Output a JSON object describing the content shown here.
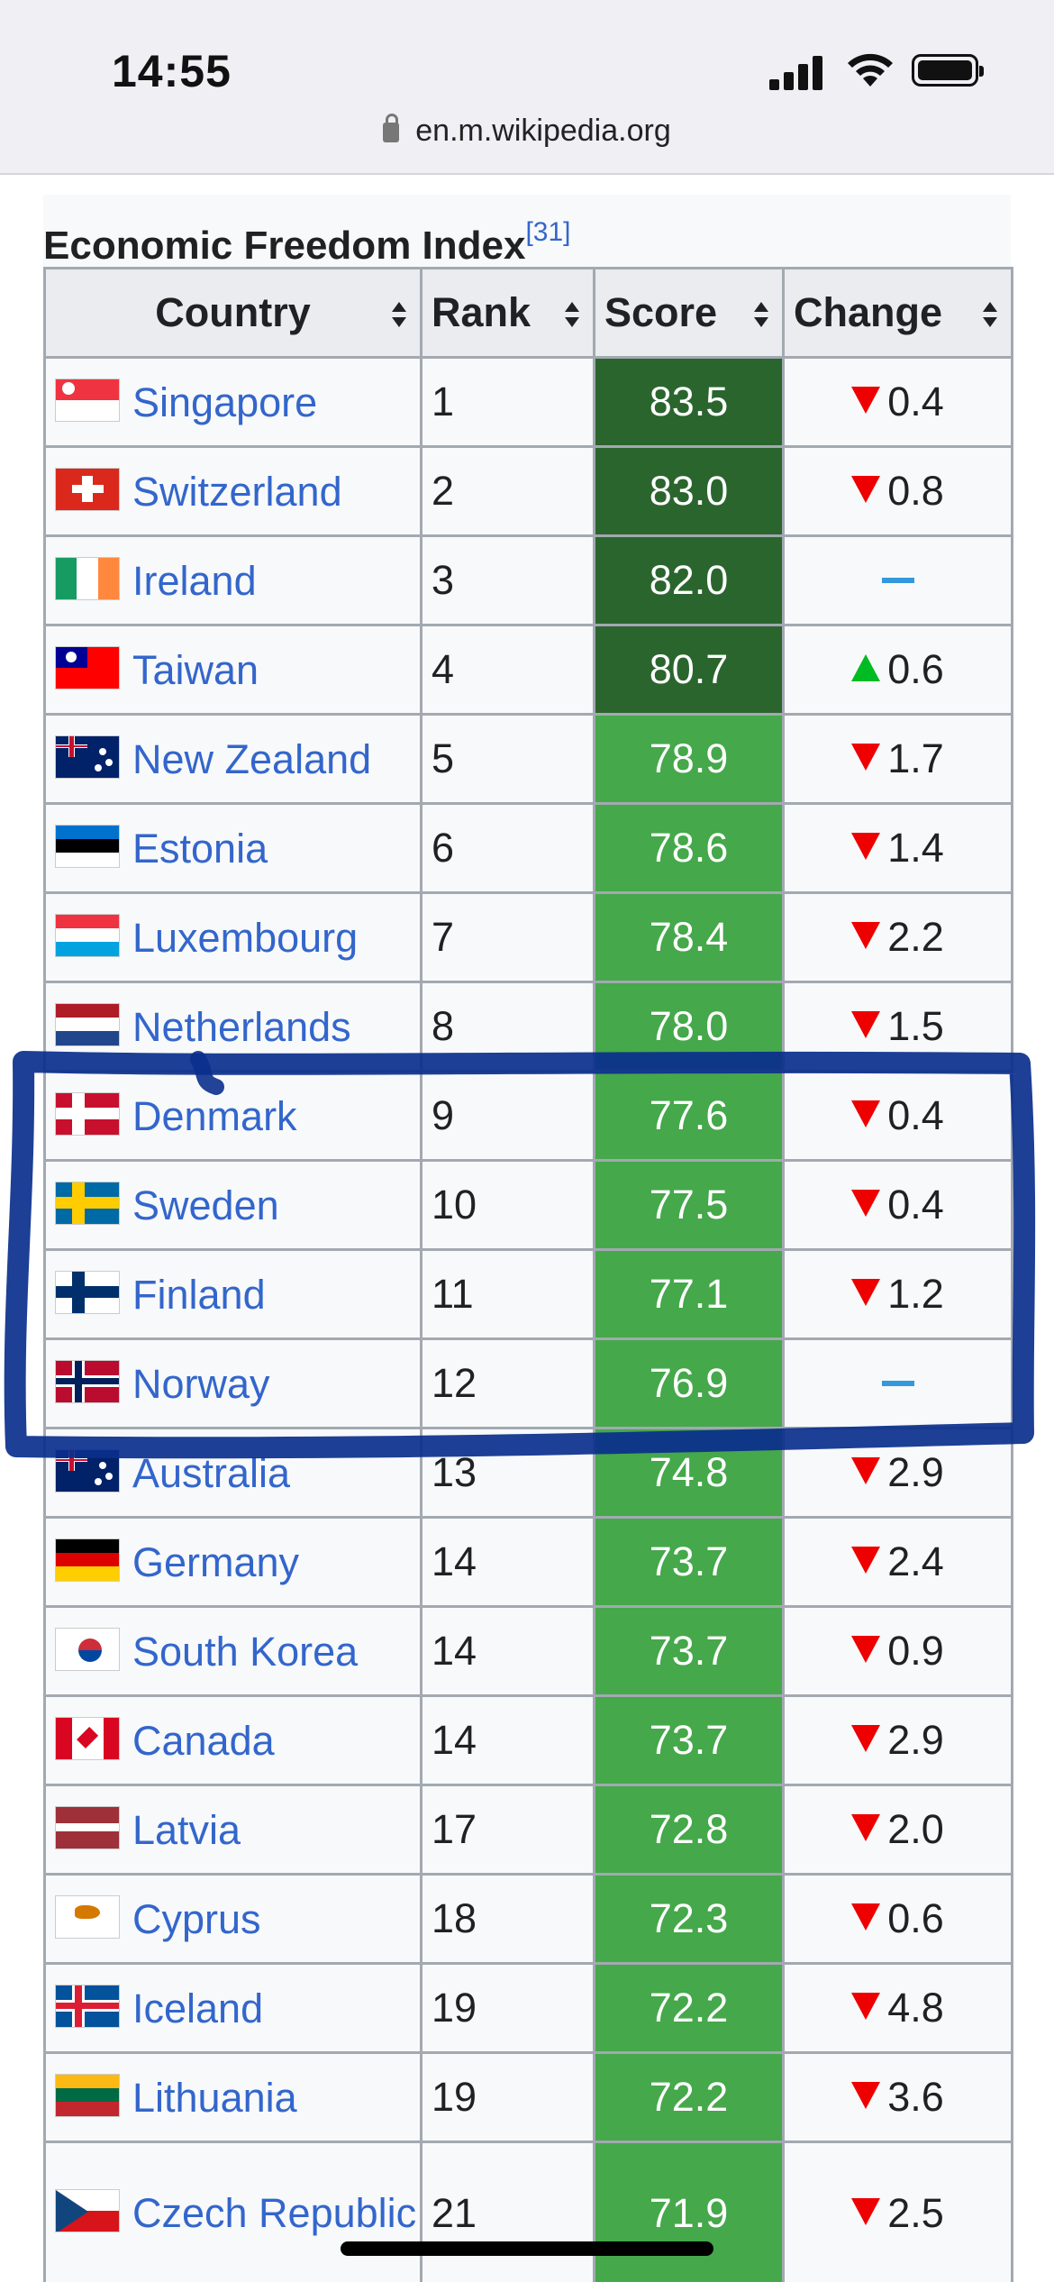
{
  "status_bar": {
    "time": "14:55"
  },
  "browser": {
    "url": "en.m.wikipedia.org"
  },
  "table": {
    "caption": "Economic Freedom Index",
    "citation": "[31]",
    "headers": {
      "country": "Country",
      "rank": "Rank",
      "score": "Score",
      "change": "Change"
    },
    "colors": {
      "dark_green": "#2b652e",
      "green": "#45a84a",
      "down": "#ee0000",
      "up": "#00bb22",
      "neutral": "#3399dd",
      "link": "#3366cc"
    },
    "rows": [
      {
        "country": "Singapore",
        "flag": "singapore-flag",
        "rank": "1",
        "score": "83.5",
        "band": "dark",
        "dir": "down",
        "change": "0.4"
      },
      {
        "country": "Switzerland",
        "flag": "switzerland-flag",
        "rank": "2",
        "score": "83.0",
        "band": "dark",
        "dir": "down",
        "change": "0.8"
      },
      {
        "country": "Ireland",
        "flag": "ireland-flag",
        "rank": "3",
        "score": "82.0",
        "band": "dark",
        "dir": "none",
        "change": ""
      },
      {
        "country": "Taiwan",
        "flag": "taiwan-flag",
        "rank": "4",
        "score": "80.7",
        "band": "dark",
        "dir": "up",
        "change": "0.6"
      },
      {
        "country": "New Zealand",
        "flag": "new-zealand-flag",
        "rank": "5",
        "score": "78.9",
        "band": "light",
        "dir": "down",
        "change": "1.7"
      },
      {
        "country": "Estonia",
        "flag": "estonia-flag",
        "rank": "6",
        "score": "78.6",
        "band": "light",
        "dir": "down",
        "change": "1.4"
      },
      {
        "country": "Luxembourg",
        "flag": "luxembourg-flag",
        "rank": "7",
        "score": "78.4",
        "band": "light",
        "dir": "down",
        "change": "2.2"
      },
      {
        "country": "Netherlands",
        "flag": "netherlands-flag",
        "rank": "8",
        "score": "78.0",
        "band": "light",
        "dir": "down",
        "change": "1.5"
      },
      {
        "country": "Denmark",
        "flag": "denmark-flag",
        "rank": "9",
        "score": "77.6",
        "band": "light",
        "dir": "down",
        "change": "0.4"
      },
      {
        "country": "Sweden",
        "flag": "sweden-flag",
        "rank": "10",
        "score": "77.5",
        "band": "light",
        "dir": "down",
        "change": "0.4"
      },
      {
        "country": "Finland",
        "flag": "finland-flag",
        "rank": "11",
        "score": "77.1",
        "band": "light",
        "dir": "down",
        "change": "1.2"
      },
      {
        "country": "Norway",
        "flag": "norway-flag",
        "rank": "12",
        "score": "76.9",
        "band": "light",
        "dir": "none",
        "change": ""
      },
      {
        "country": "Australia",
        "flag": "australia-flag",
        "rank": "13",
        "score": "74.8",
        "band": "light",
        "dir": "down",
        "change": "2.9"
      },
      {
        "country": "Germany",
        "flag": "germany-flag",
        "rank": "14",
        "score": "73.7",
        "band": "light",
        "dir": "down",
        "change": "2.4"
      },
      {
        "country": "South Korea",
        "flag": "south-korea-flag",
        "rank": "14",
        "score": "73.7",
        "band": "light",
        "dir": "down",
        "change": "0.9"
      },
      {
        "country": "Canada",
        "flag": "canada-flag",
        "rank": "14",
        "score": "73.7",
        "band": "light",
        "dir": "down",
        "change": "2.9"
      },
      {
        "country": "Latvia",
        "flag": "latvia-flag",
        "rank": "17",
        "score": "72.8",
        "band": "light",
        "dir": "down",
        "change": "2.0"
      },
      {
        "country": "Cyprus",
        "flag": "cyprus-flag",
        "rank": "18",
        "score": "72.3",
        "band": "light",
        "dir": "down",
        "change": "0.6"
      },
      {
        "country": "Iceland",
        "flag": "iceland-flag",
        "rank": "19",
        "score": "72.2",
        "band": "light",
        "dir": "down",
        "change": "4.8"
      },
      {
        "country": "Lithuania",
        "flag": "lithuania-flag",
        "rank": "19",
        "score": "72.2",
        "band": "light",
        "dir": "down",
        "change": "3.6"
      },
      {
        "country": "Czech Republic",
        "flag": "czech-republic-flag",
        "rank": "21",
        "score": "71.9",
        "band": "light",
        "dir": "down",
        "change": "2.5"
      }
    ]
  }
}
